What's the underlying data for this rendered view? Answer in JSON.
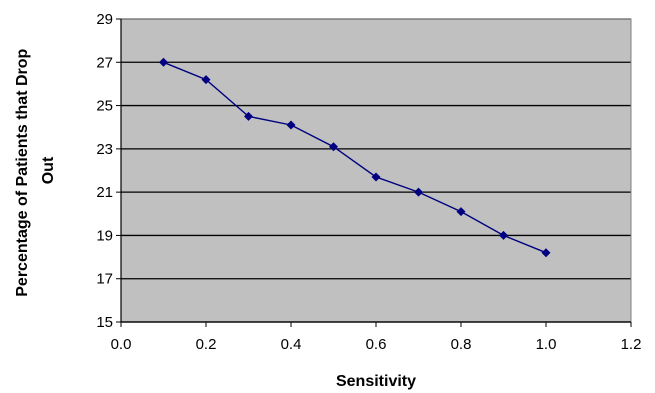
{
  "chart_data": {
    "type": "line",
    "title": "",
    "xlabel": "Sensitivity",
    "ylabel_lines": [
      "Percentage of Patients that Drop",
      "Out"
    ],
    "xlim": [
      0.0,
      1.2
    ],
    "ylim": [
      15,
      29
    ],
    "x_ticks": [
      "0.0",
      "0.2",
      "0.4",
      "0.6",
      "0.8",
      "1.0",
      "1.2"
    ],
    "y_ticks": [
      "15",
      "17",
      "19",
      "21",
      "23",
      "25",
      "27",
      "29"
    ],
    "grid": "horizontal",
    "legend": "none",
    "plot_background": "#c0c0c0",
    "series": [
      {
        "color": "#000080",
        "marker": "diamond",
        "x": [
          0.1,
          0.2,
          0.3,
          0.4,
          0.5,
          0.6,
          0.7,
          0.8,
          0.9,
          1.0
        ],
        "y": [
          27.0,
          26.2,
          24.5,
          24.1,
          23.1,
          21.7,
          21.0,
          20.1,
          19.0,
          18.2
        ]
      }
    ]
  }
}
